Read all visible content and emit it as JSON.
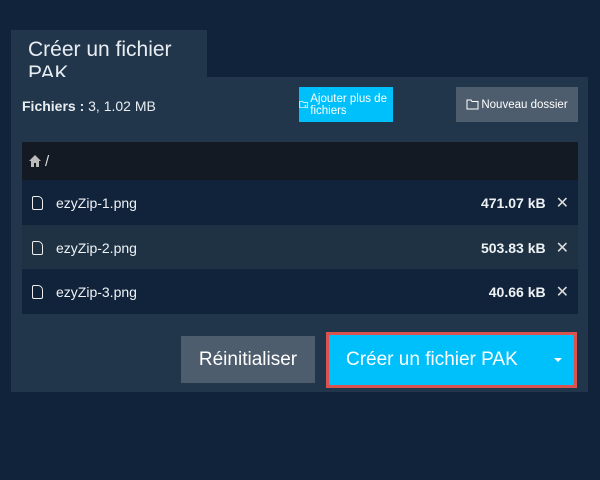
{
  "tab": {
    "title": "Créer un fichier PAK"
  },
  "summary": {
    "label": "Fichiers :",
    "value": "3, 1.02 MB"
  },
  "toolbar": {
    "add_label": "Ajouter plus de fichiers",
    "new_folder_label": "Nouveau dossier"
  },
  "breadcrumb": {
    "path": "/"
  },
  "files": [
    {
      "name": "ezyZip-1.png",
      "size": "471.07 kB"
    },
    {
      "name": "ezyZip-2.png",
      "size": "503.83 kB"
    },
    {
      "name": "ezyZip-3.png",
      "size": "40.66 kB"
    }
  ],
  "actions": {
    "reset_label": "Réinitialiser",
    "create_label": "Créer un fichier PAK"
  },
  "colors": {
    "accent": "#00c0fc",
    "highlight": "#d9534f",
    "secondary": "#4e5d6d"
  }
}
